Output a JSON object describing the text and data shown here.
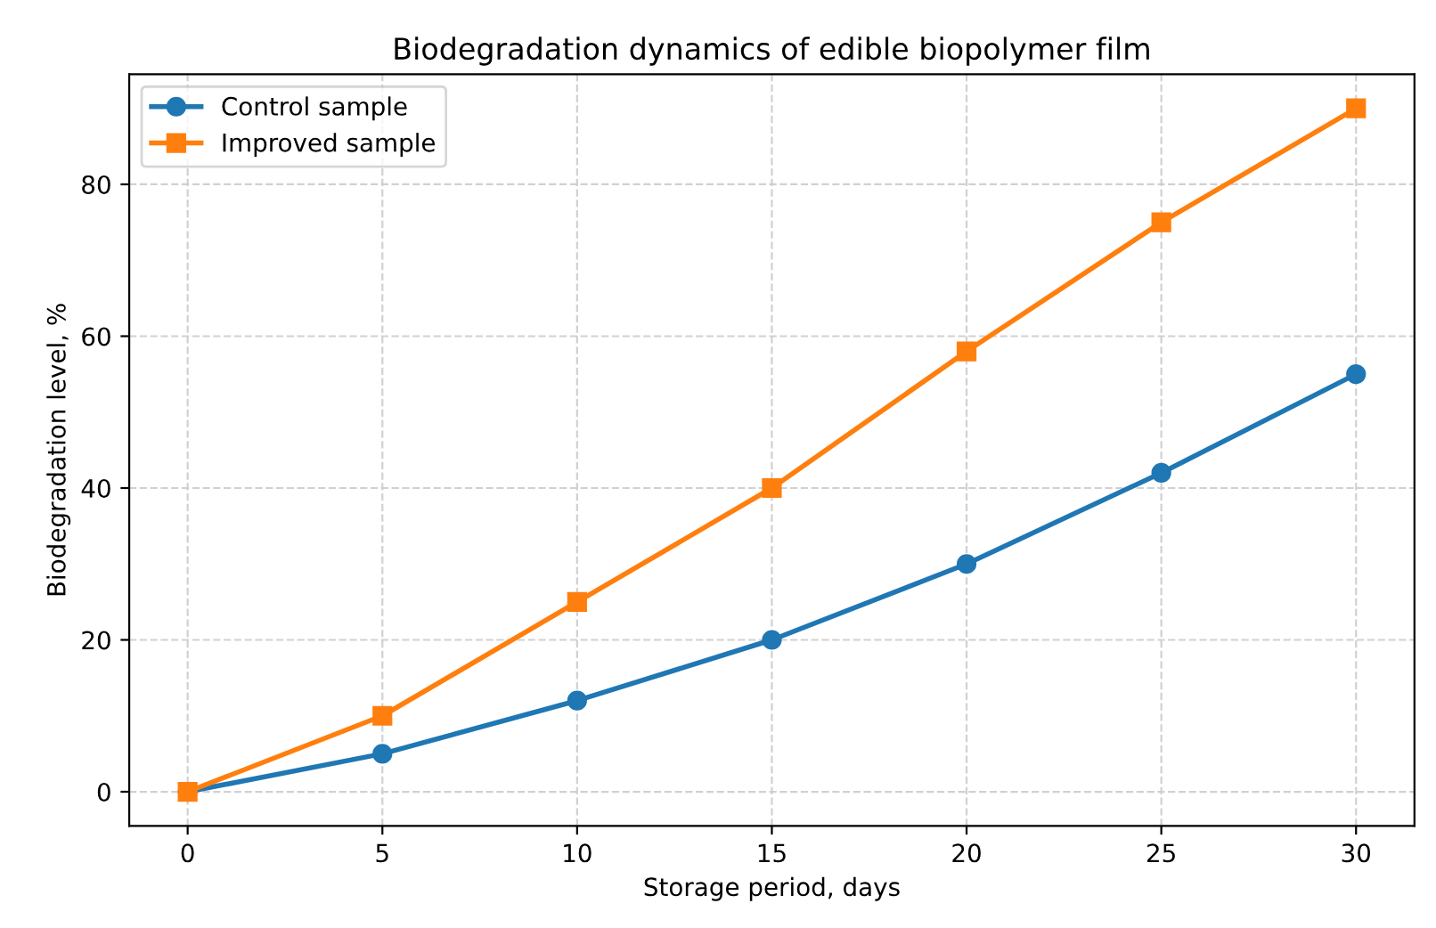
{
  "chart_data": {
    "type": "line",
    "title": "Biodegradation dynamics of edible biopolymer film",
    "xlabel": "Storage period, days",
    "ylabel": "Biodegradation level, %",
    "x": [
      0,
      5,
      10,
      15,
      20,
      25,
      30
    ],
    "series": [
      {
        "name": "Control sample",
        "color": "#1f77b4",
        "marker": "circle",
        "values": [
          0,
          5,
          12,
          20,
          30,
          42,
          55
        ]
      },
      {
        "name": "Improved sample",
        "color": "#ff7f0e",
        "marker": "square",
        "values": [
          0,
          10,
          25,
          40,
          58,
          75,
          90
        ]
      }
    ],
    "xlim": [
      -1.5,
      31.5
    ],
    "ylim": [
      -4.5,
      94.5
    ],
    "xticks": [
      0,
      5,
      10,
      15,
      20,
      25,
      30
    ],
    "yticks": [
      0,
      20,
      40,
      60,
      80
    ],
    "grid": true,
    "legend": "top left",
    "line_style": "solid"
  }
}
